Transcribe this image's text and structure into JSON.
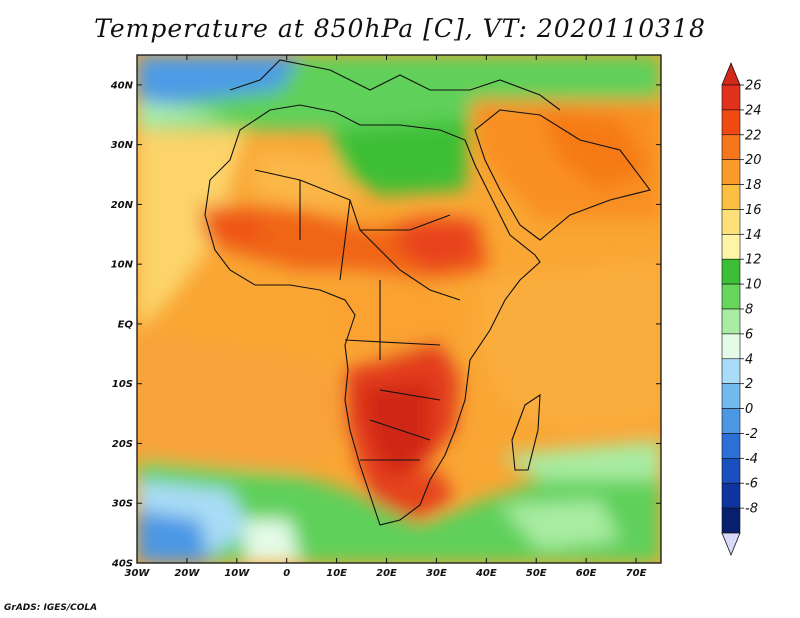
{
  "title": "Temperature at 850hPa [C], VT: 2020110318",
  "credit": "GrADS: IGES/COLA",
  "map": {
    "lon_range": [
      -30,
      75
    ],
    "lat_range": [
      -40,
      45
    ],
    "lon_ticks": [
      "30W",
      "20W",
      "10W",
      "0",
      "10E",
      "20E",
      "30E",
      "40E",
      "50E",
      "60E",
      "70E"
    ],
    "lat_ticks": [
      "40N",
      "30N",
      "20N",
      "10N",
      "EQ",
      "10S",
      "20S",
      "30S",
      "40S"
    ]
  },
  "colorbar": {
    "labels": [
      "26",
      "24",
      "22",
      "20",
      "18",
      "16",
      "14",
      "12",
      "10",
      "8",
      "6",
      "4",
      "2",
      "0",
      "-2",
      "-4",
      "-6",
      "-8"
    ],
    "colors": [
      "#e1301d",
      "#f04a12",
      "#f7761c",
      "#f99c2b",
      "#fbbf42",
      "#fde07a",
      "#fdf4aa",
      "#3cbf36",
      "#67d65c",
      "#a9eca2",
      "#e4fbe7",
      "#a9dcf7",
      "#75baef",
      "#4b97e4",
      "#2c6fd6",
      "#1a4fc0",
      "#0f34a0",
      "#081f70"
    ],
    "top_color": "#d42818",
    "bottom_color": "#d8d8f8"
  }
}
